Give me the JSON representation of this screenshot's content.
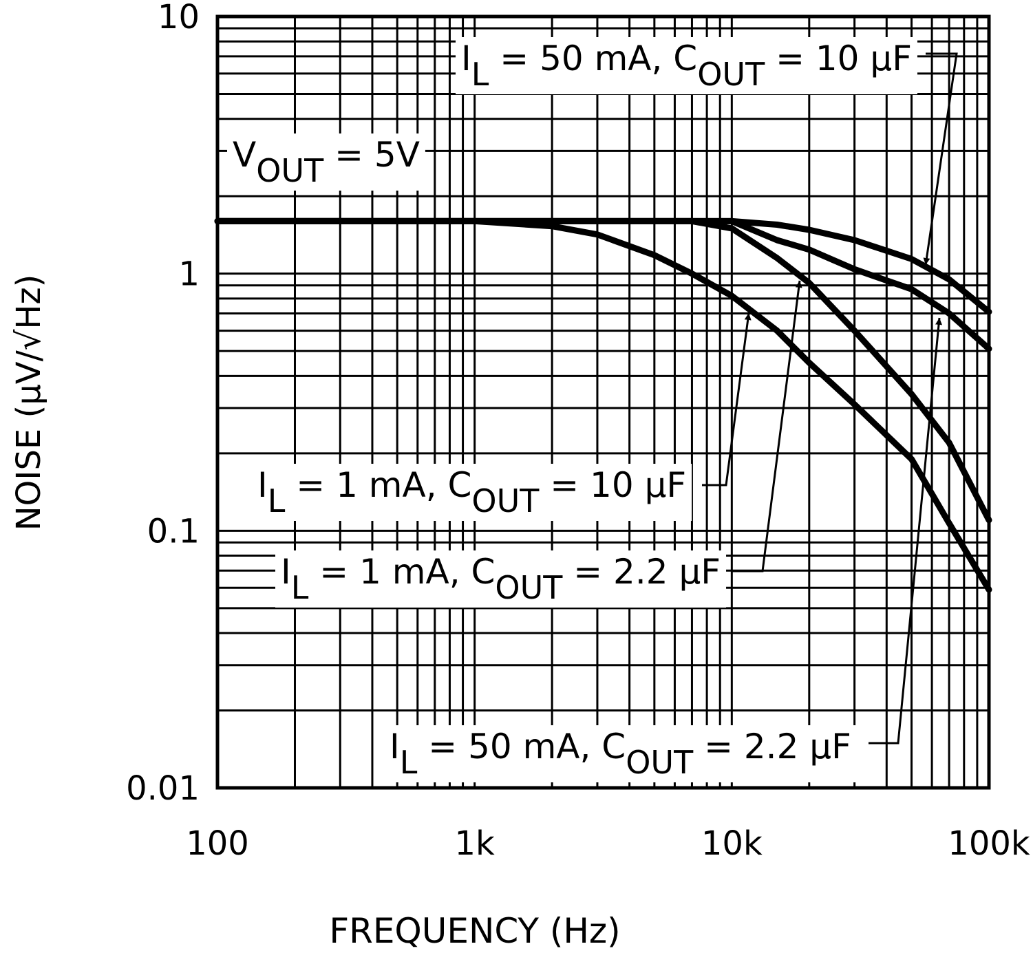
{
  "chart_data": {
    "type": "line",
    "xlabel": "FREQUENCY (Hz)",
    "ylabel": "NOISE (µV/√Hz)",
    "log_x": true,
    "log_y": true,
    "grid": true,
    "xlim": [
      100,
      100000
    ],
    "ylim": [
      0.01,
      10
    ],
    "xticks": [
      100,
      {
        "value": 1000,
        "label": "1k"
      },
      {
        "value": 10000,
        "label": "10k"
      },
      {
        "value": 100000,
        "label": "100k"
      }
    ],
    "yticks": [
      0.01,
      0.1,
      1,
      10
    ],
    "xgrid": [
      200,
      300,
      400,
      500,
      600,
      700,
      800,
      900,
      1000,
      2000,
      3000,
      4000,
      5000,
      6000,
      7000,
      8000,
      9000,
      10000,
      20000,
      30000,
      40000,
      50000,
      60000,
      70000,
      80000,
      90000
    ],
    "ygrid": [
      0.02,
      0.03,
      0.04,
      0.05,
      0.06,
      0.07,
      0.08,
      0.09,
      0.1,
      0.2,
      0.3,
      0.4,
      0.5,
      0.6,
      0.7,
      0.8,
      0.9,
      1,
      2,
      3,
      4,
      5,
      6,
      7,
      8,
      9
    ],
    "annotation_parts": [
      "V",
      "OUT",
      " = 5V"
    ],
    "x": [
      100,
      1000,
      2000,
      3000,
      5000,
      7000,
      10000,
      15000,
      20000,
      30000,
      50000,
      70000,
      100000
    ],
    "series": [
      {
        "label_parts": [
          "I",
          "L",
          " = 50 mA, C",
          "OUT",
          " = 10 µF"
        ],
        "color": "#000000",
        "values": [
          1.6,
          1.6,
          1.6,
          1.6,
          1.6,
          1.6,
          1.6,
          1.55,
          1.48,
          1.35,
          1.14,
          0.95,
          0.71
        ]
      },
      {
        "label_parts": [
          "I",
          "L",
          " = 50 mA, C",
          "OUT",
          " = 2.2 µF"
        ],
        "color": "#000000",
        "values": [
          1.6,
          1.6,
          1.6,
          1.6,
          1.6,
          1.6,
          1.6,
          1.35,
          1.24,
          1.04,
          0.87,
          0.7,
          0.51
        ]
      },
      {
        "label_parts": [
          "I",
          "L",
          " = 1 mA, C",
          "OUT",
          " = 2.2 µF"
        ],
        "color": "#000000",
        "values": [
          1.6,
          1.6,
          1.6,
          1.6,
          1.6,
          1.6,
          1.5,
          1.15,
          0.92,
          0.6,
          0.34,
          0.22,
          0.11
        ]
      },
      {
        "label_parts": [
          "I",
          "L",
          " = 1 mA, C",
          "OUT",
          " = 10 µF"
        ],
        "color": "#000000",
        "values": [
          1.6,
          1.6,
          1.53,
          1.42,
          1.18,
          1.0,
          0.82,
          0.6,
          0.45,
          0.31,
          0.19,
          0.107,
          0.059
        ]
      }
    ]
  }
}
